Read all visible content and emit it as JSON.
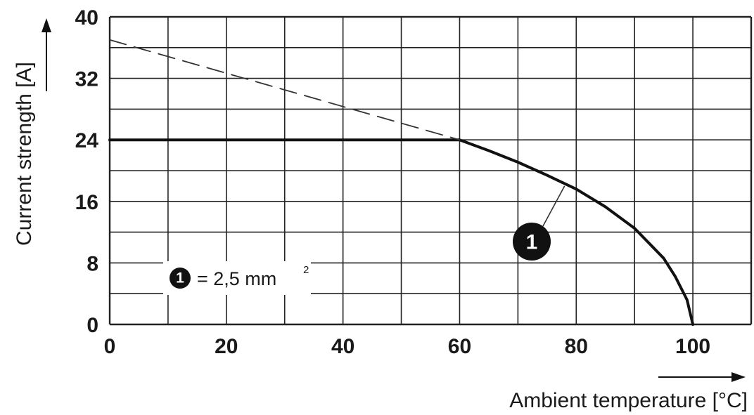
{
  "chart_data": {
    "type": "line",
    "xlabel": "Ambient temperature [°C]",
    "ylabel": "Current strength [A]",
    "xlim": [
      0,
      110
    ],
    "ylim": [
      0,
      40
    ],
    "x_ticks": [
      0,
      20,
      40,
      60,
      80,
      100
    ],
    "y_ticks": [
      0,
      8,
      16,
      24,
      32,
      40
    ],
    "x_grid_step": 10,
    "y_grid_step": 4,
    "grid": true,
    "series": [
      {
        "style": "solid",
        "color": "#111111",
        "x": [
          0,
          60,
          65,
          70,
          75,
          80,
          85,
          90,
          95,
          97,
          99,
          100
        ],
        "y": [
          24,
          24,
          22.6,
          21.1,
          19.4,
          17.6,
          15.3,
          12.5,
          8.6,
          6.2,
          3.2,
          0
        ]
      },
      {
        "style": "dashed",
        "color": "#333333",
        "x": [
          0,
          60
        ],
        "y": [
          37,
          24
        ]
      }
    ],
    "annotations": [
      {
        "label": "1",
        "text": "",
        "points_to": {
          "x": 78,
          "y": 18
        }
      }
    ],
    "legend": {
      "placement": "bottom-left",
      "marker": "1",
      "text": "= 2,5 mm",
      "superscript": "2"
    }
  }
}
